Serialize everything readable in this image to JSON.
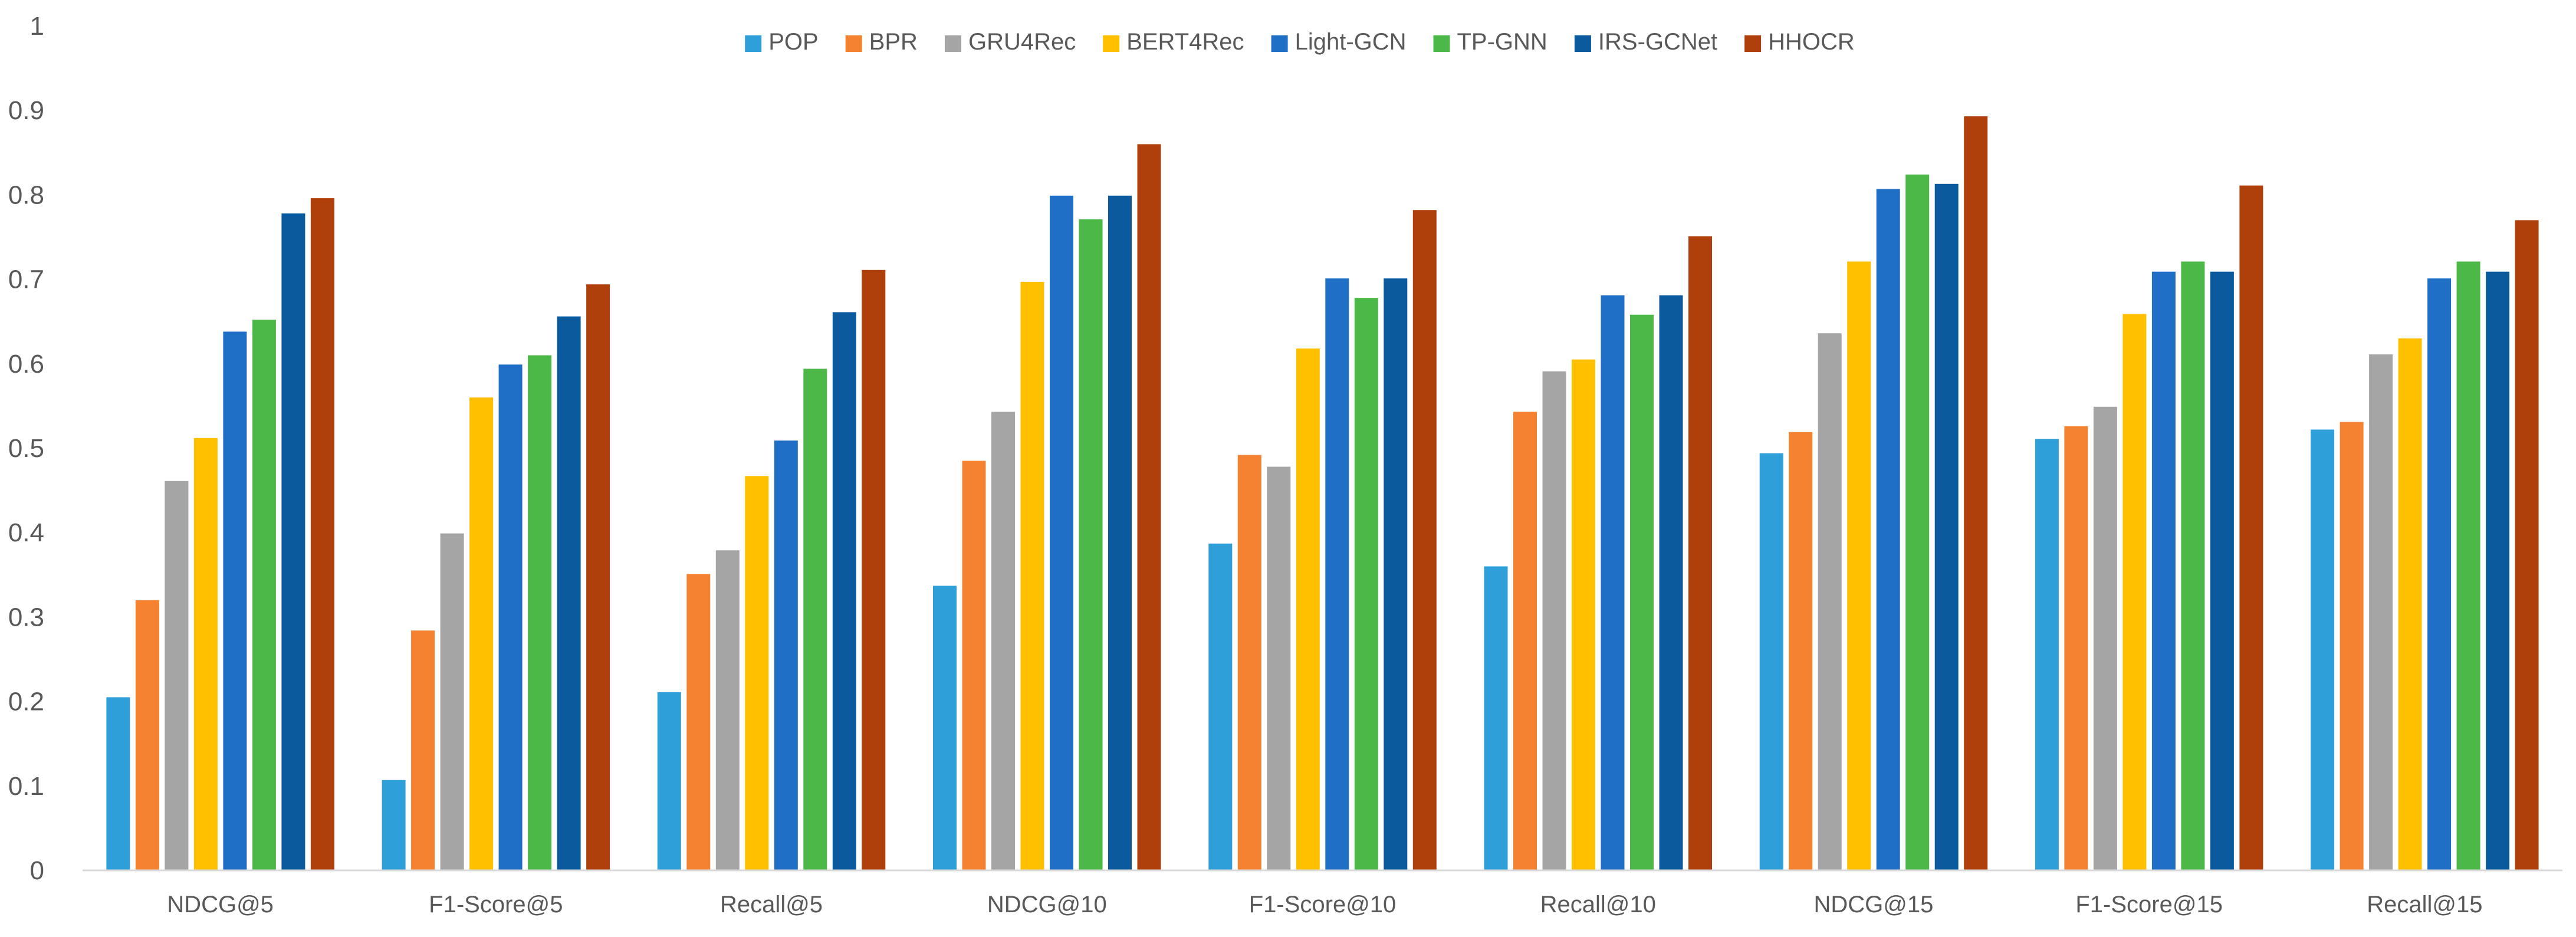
{
  "chart_data": {
    "type": "bar",
    "title": "",
    "xlabel": "",
    "ylabel": "",
    "ylim": [
      0,
      1
    ],
    "yticks": [
      "0",
      "0.1",
      "0.2",
      "0.3",
      "0.4",
      "0.5",
      "0.6",
      "0.7",
      "0.8",
      "0.9",
      "1"
    ],
    "grid": false,
    "legend_position": "top-center",
    "categories": [
      "NDCG@5",
      "F1-Score@5",
      "Recall@5",
      "NDCG@10",
      "F1-Score@10",
      "Recall@10",
      "NDCG@15",
      "F1-Score@15",
      "Recall@15"
    ],
    "series": [
      {
        "name": "POP",
        "color": "#2E9FD8",
        "values": [
          0.205,
          0.107,
          0.211,
          0.337,
          0.387,
          0.36,
          0.494,
          0.511,
          0.522
        ]
      },
      {
        "name": "BPR",
        "color": "#F58231",
        "values": [
          0.32,
          0.284,
          0.351,
          0.485,
          0.492,
          0.543,
          0.519,
          0.526,
          0.531
        ]
      },
      {
        "name": "GRU4Rec",
        "color": "#A5A5A5",
        "values": [
          0.461,
          0.399,
          0.379,
          0.543,
          0.478,
          0.591,
          0.636,
          0.549,
          0.611
        ]
      },
      {
        "name": "BERT4Rec",
        "color": "#FFC000",
        "values": [
          0.512,
          0.56,
          0.467,
          0.697,
          0.618,
          0.605,
          0.721,
          0.659,
          0.63
        ]
      },
      {
        "name": "Light-GCN",
        "color": "#1F6FC6",
        "values": [
          0.638,
          0.599,
          0.509,
          0.799,
          0.701,
          0.681,
          0.807,
          0.709,
          0.701
        ]
      },
      {
        "name": "TP-GNN",
        "color": "#4CB848",
        "values": [
          0.652,
          0.61,
          0.594,
          0.771,
          0.678,
          0.658,
          0.824,
          0.721,
          0.721
        ]
      },
      {
        "name": "IRS-GCNet",
        "color": "#0B5A9E",
        "values": [
          0.778,
          0.656,
          0.661,
          0.799,
          0.701,
          0.681,
          0.813,
          0.709,
          0.709
        ]
      },
      {
        "name": "HHOCR",
        "color": "#B0400B",
        "values": [
          0.796,
          0.694,
          0.711,
          0.86,
          0.782,
          0.751,
          0.893,
          0.811,
          0.77
        ]
      }
    ]
  }
}
